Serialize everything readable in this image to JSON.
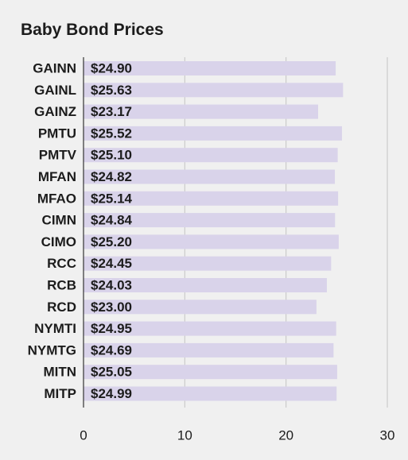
{
  "chart_data": {
    "type": "bar",
    "orientation": "horizontal",
    "title": "Baby Bond Prices",
    "xlabel": "",
    "ylabel": "",
    "categories": [
      "GAINN",
      "GAINL",
      "GAINZ",
      "PMTU",
      "PMTV",
      "MFAN",
      "MFAO",
      "CIMN",
      "CIMO",
      "RCC",
      "RCB",
      "RCD",
      "NYMTI",
      "NYMTG",
      "MITN",
      "MITP"
    ],
    "values": [
      24.9,
      25.63,
      23.17,
      25.52,
      25.1,
      24.82,
      25.14,
      24.84,
      25.2,
      24.45,
      24.03,
      23.0,
      24.95,
      24.69,
      25.05,
      24.99
    ],
    "value_labels": [
      "$24.90",
      "$25.63",
      "$23.17",
      "$25.52",
      "$25.10",
      "$24.82",
      "$25.14",
      "$24.84",
      "$25.20",
      "$24.45",
      "$24.03",
      "$23.00",
      "$24.95",
      "$24.69",
      "$25.05",
      "$24.99"
    ],
    "xlim": [
      0,
      30
    ],
    "xticks": [
      0,
      10,
      20,
      30
    ],
    "xtick_labels": [
      "0",
      "10",
      "20",
      "30"
    ],
    "grid": true,
    "legend": "none"
  },
  "colors": {
    "background": "#f0f0f0",
    "bar": "#d9d3ea",
    "gridline": "#c4c4c4",
    "axis": "#333333",
    "text": "#1c1c1c"
  }
}
